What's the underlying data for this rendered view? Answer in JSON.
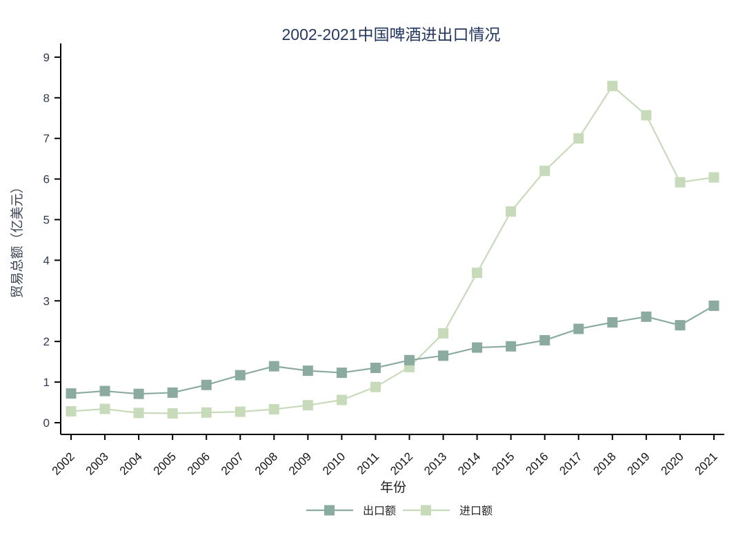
{
  "page": {
    "background": "#ffffff"
  },
  "chart_data": {
    "type": "line",
    "title": "2002-2021中国啤酒进出口情况",
    "xlabel": "年份",
    "ylabel": "贸易总额（亿美元）",
    "categories": [
      "2002",
      "2003",
      "2004",
      "2005",
      "2006",
      "2007",
      "2008",
      "2009",
      "2010",
      "2011",
      "2012",
      "2013",
      "2014",
      "2015",
      "2016",
      "2017",
      "2018",
      "2019",
      "2020",
      "2021"
    ],
    "series": [
      {
        "id": "export",
        "name": "出口额",
        "color": "#8BABA1",
        "marker": "square",
        "values": [
          0.72,
          0.78,
          0.71,
          0.74,
          0.93,
          1.17,
          1.39,
          1.28,
          1.23,
          1.35,
          1.54,
          1.65,
          1.85,
          1.88,
          2.03,
          2.31,
          2.47,
          2.61,
          2.4,
          2.88
        ]
      },
      {
        "id": "import",
        "name": "进口额",
        "color": "#C7DABA",
        "marker": "square",
        "values": [
          0.28,
          0.34,
          0.24,
          0.23,
          0.25,
          0.27,
          0.33,
          0.43,
          0.56,
          0.88,
          1.37,
          2.2,
          3.69,
          5.2,
          6.2,
          7.0,
          8.29,
          7.57,
          5.92,
          6.04
        ]
      }
    ],
    "ylim": [
      0,
      9
    ],
    "yticks": [
      0,
      1,
      2,
      3,
      4,
      5,
      6,
      7,
      8,
      9
    ],
    "grid": false,
    "legend_position": "bottom-center"
  },
  "colors": {
    "axis_line": "#000000",
    "y_tick_label": "#2F3B52",
    "x_tick_label": "#141414"
  }
}
